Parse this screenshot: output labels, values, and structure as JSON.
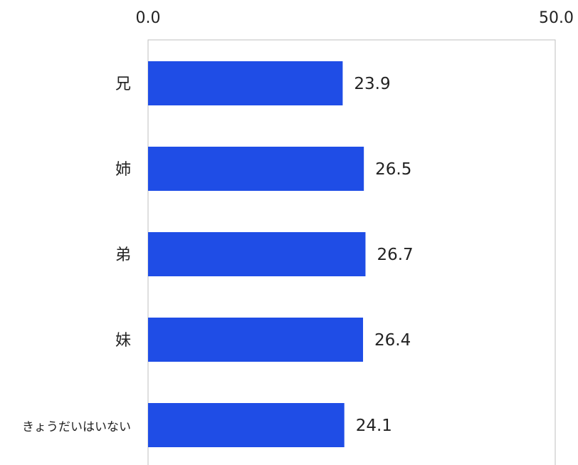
{
  "chart_data": {
    "type": "bar",
    "orientation": "horizontal",
    "categories": [
      "兄",
      "姉",
      "弟",
      "妹",
      "きょうだいはいない"
    ],
    "values": [
      23.9,
      26.5,
      26.7,
      26.4,
      24.1
    ],
    "value_labels": [
      "23.9",
      "26.5",
      "26.7",
      "26.4",
      "24.1"
    ],
    "xlim": [
      0,
      50
    ],
    "x_tick_labels": [
      "0.0",
      "50.0"
    ],
    "axis_position": "top",
    "grid": false,
    "bar_color": "#1f4de6"
  }
}
